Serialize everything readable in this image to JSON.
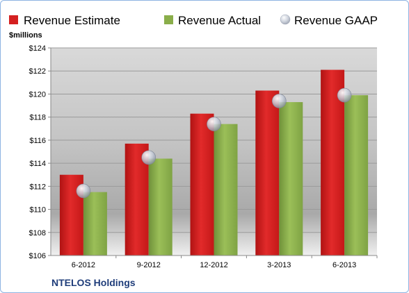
{
  "chart_data": {
    "type": "bar",
    "title": "",
    "ylabel": "$millions",
    "xlabel": "",
    "caption": "NTELOS Holdings",
    "categories": [
      "6-2012",
      "9-2012",
      "12-2012",
      "3-2013",
      "6-2013"
    ],
    "series": [
      {
        "name": "Revenue Estimate",
        "kind": "bar",
        "color": "#d42020",
        "values": [
          113.0,
          115.7,
          118.3,
          120.3,
          122.1
        ]
      },
      {
        "name": "Revenue Actual",
        "kind": "bar",
        "color": "#8aae4a",
        "values": [
          111.5,
          114.4,
          117.4,
          119.3,
          119.9
        ]
      },
      {
        "name": "Revenue GAAP",
        "kind": "marker",
        "color": "#c8cdd8",
        "values": [
          111.6,
          114.5,
          117.4,
          119.4,
          119.9
        ]
      }
    ],
    "ylim": [
      106,
      124
    ],
    "yticks": [
      106,
      108,
      110,
      112,
      114,
      116,
      118,
      120,
      122,
      124
    ],
    "ytick_labels": [
      "$106",
      "$108",
      "$110",
      "$112",
      "$114",
      "$116",
      "$118",
      "$120",
      "$122",
      "$124"
    ],
    "grid": true,
    "legend_position": "top"
  }
}
